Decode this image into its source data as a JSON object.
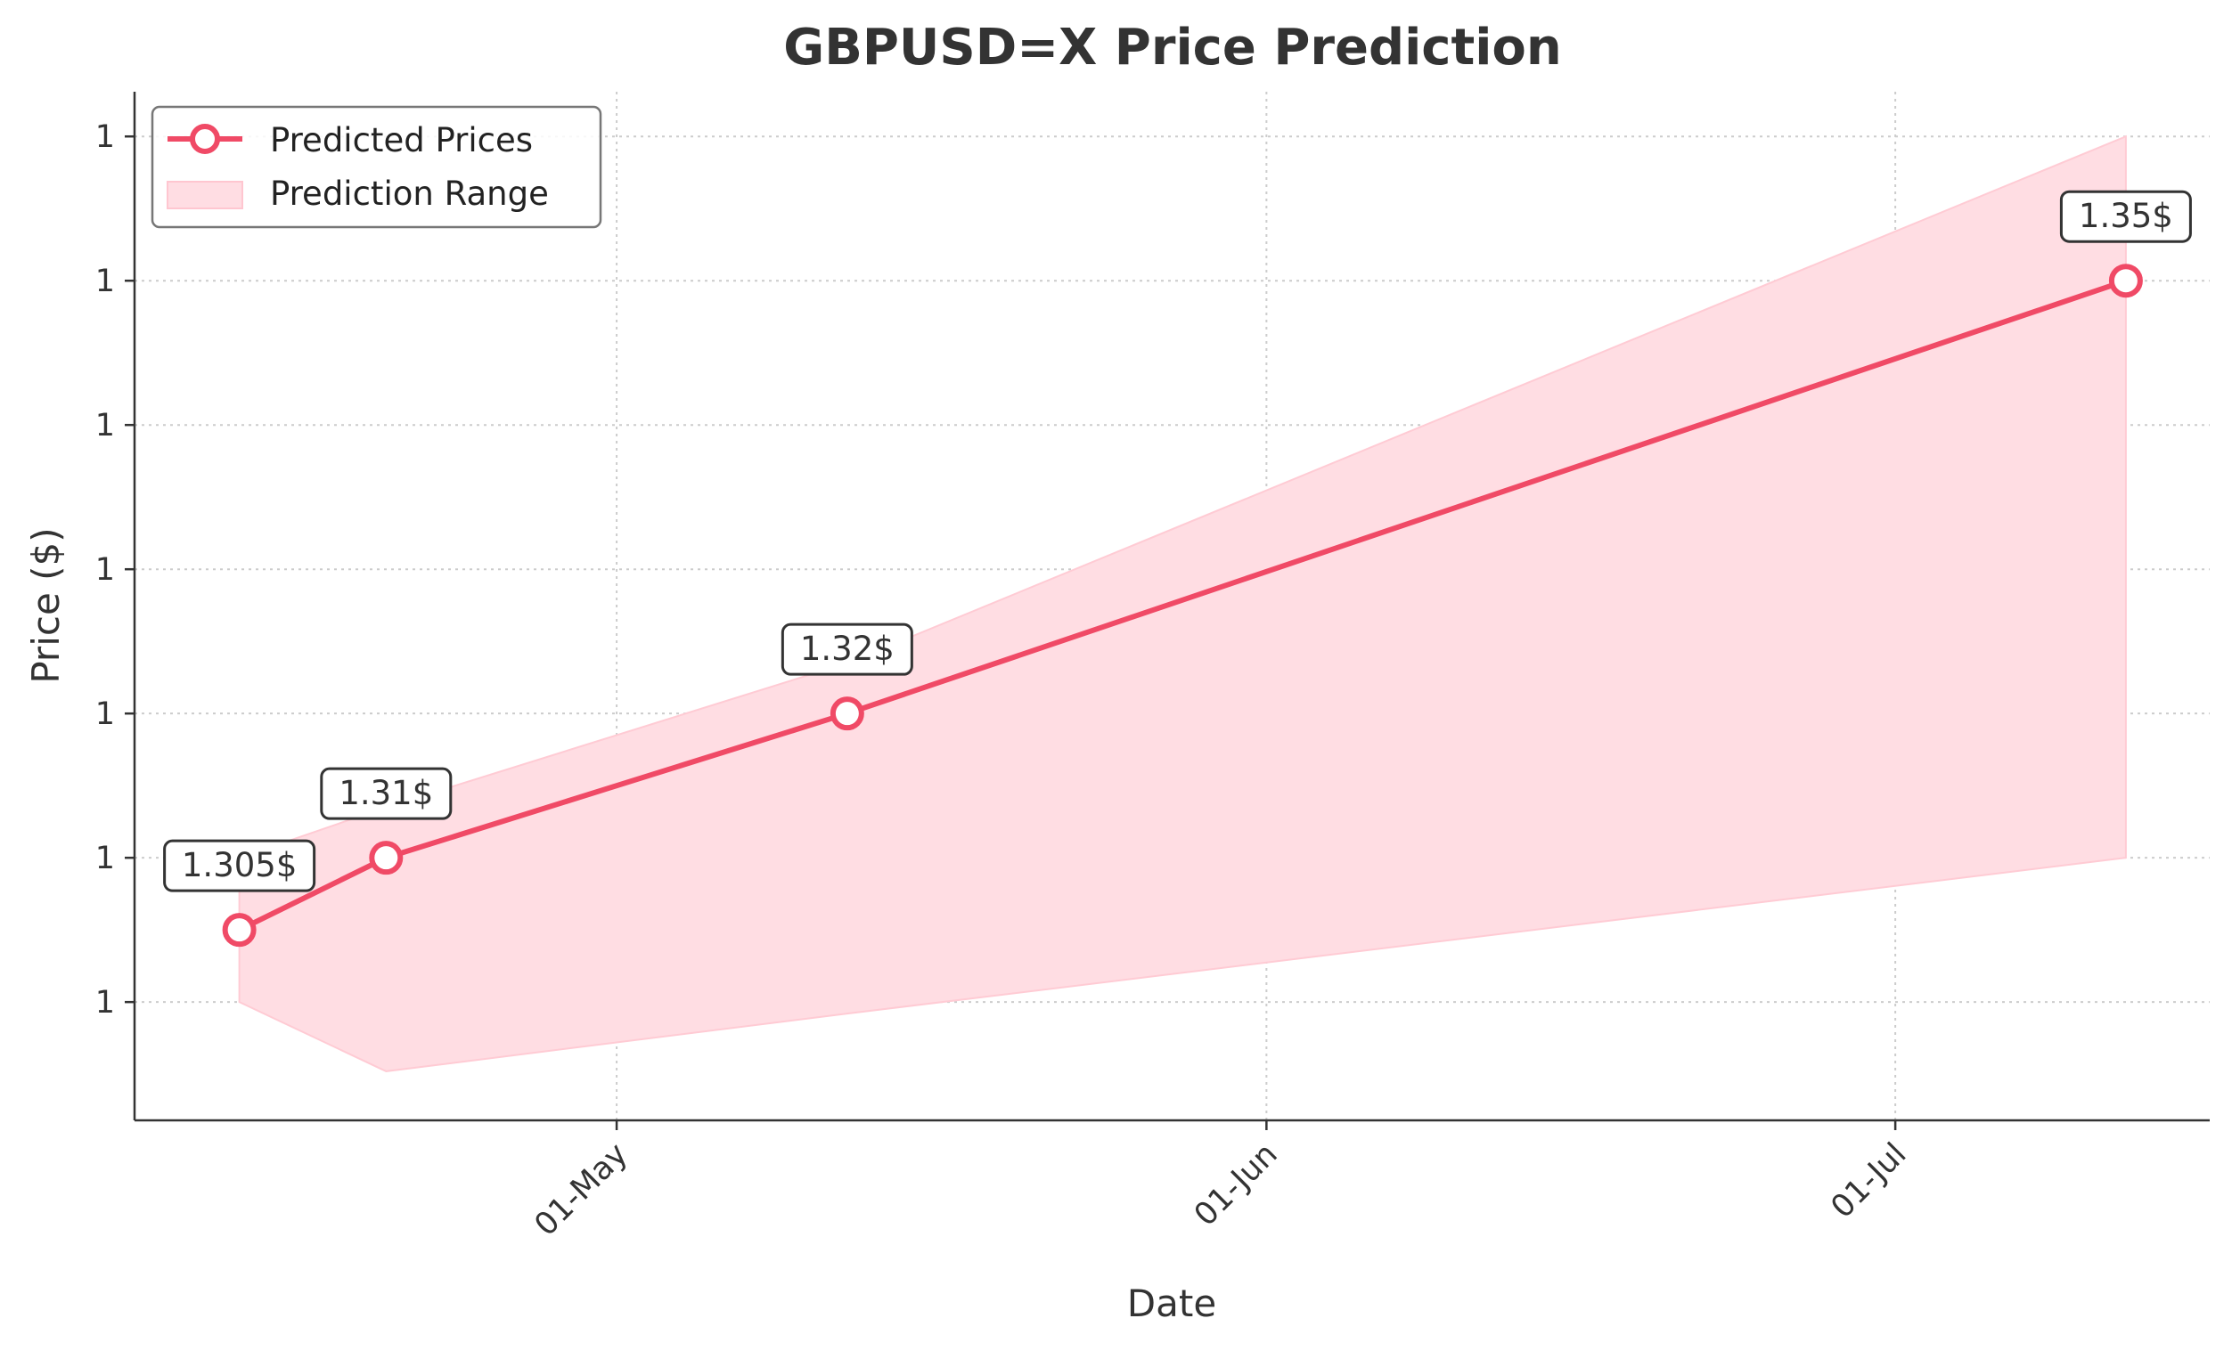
{
  "chart_data": {
    "type": "line",
    "title": "GBPUSD=X Price Prediction",
    "xlabel": "Date",
    "ylabel": "Price ($)",
    "x_ticks": [
      {
        "date": "2024-05-01",
        "label": "01-May"
      },
      {
        "date": "2024-06-01",
        "label": "01-Jun"
      },
      {
        "date": "2024-07-01",
        "label": "01-Jul"
      }
    ],
    "xlim": [
      "2024-04-08",
      "2024-07-16"
    ],
    "y_ticks": [
      {
        "value": 1.3,
        "label": "1"
      },
      {
        "value": 1.31,
        "label": "1"
      },
      {
        "value": 1.32,
        "label": "1"
      },
      {
        "value": 1.33,
        "label": "1"
      },
      {
        "value": 1.34,
        "label": "1"
      },
      {
        "value": 1.35,
        "label": "1"
      },
      {
        "value": 1.36,
        "label": "1"
      }
    ],
    "ylim": [
      1.2918,
      1.3631
    ],
    "grid": true,
    "legend_position": "top-left",
    "series": [
      {
        "name": "Predicted Prices",
        "type": "line",
        "color": "#f04a66",
        "x": [
          "2024-04-13",
          "2024-04-20",
          "2024-05-12",
          "2024-07-12"
        ],
        "y": [
          1.305,
          1.31,
          1.32,
          1.35
        ],
        "labels": [
          "1.305$",
          "1.31$",
          "1.32$",
          "1.35$"
        ]
      },
      {
        "name": "Prediction Range",
        "type": "band",
        "color": "#ffdde3",
        "x": [
          "2024-04-13",
          "2024-04-20",
          "2024-05-12",
          "2024-07-12"
        ],
        "lower": [
          1.3,
          1.2952,
          1.2992,
          1.31
        ],
        "upper": [
          1.31,
          1.3135,
          1.3235,
          1.36
        ]
      }
    ]
  }
}
